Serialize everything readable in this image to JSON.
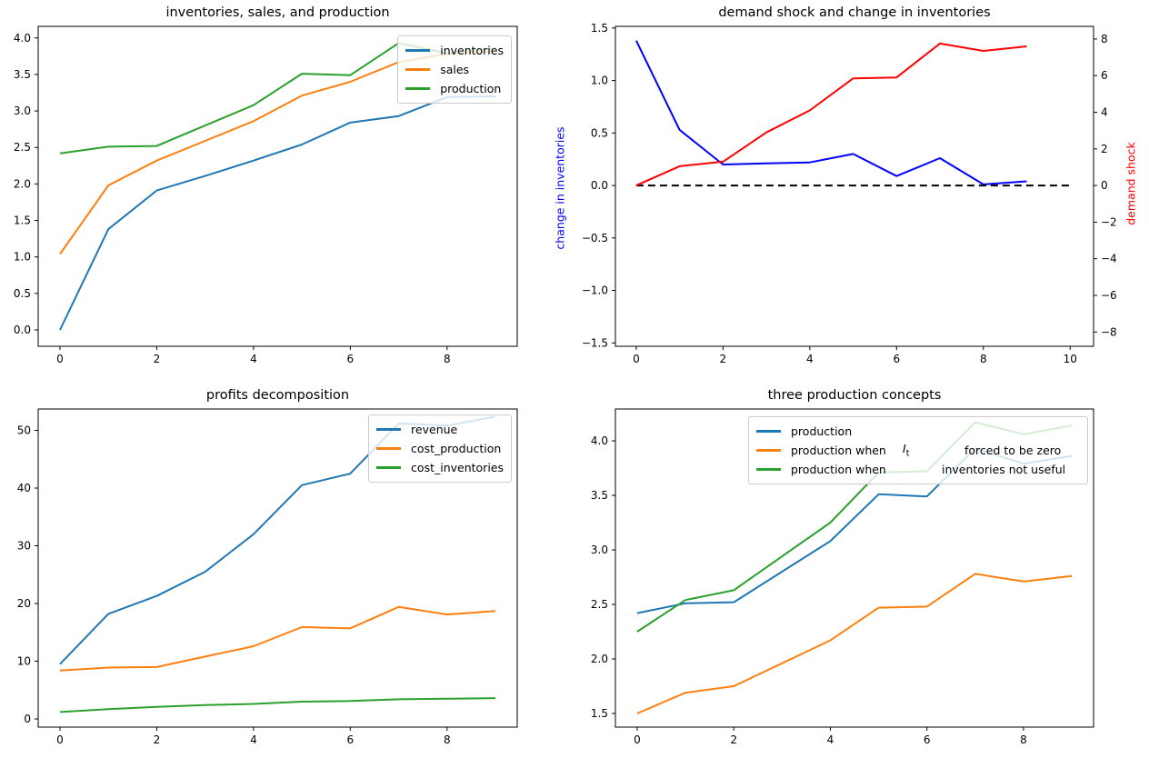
{
  "figure": {
    "background": "#ffffff"
  },
  "chart_data": [
    {
      "type": "line",
      "title": "inventories, sales, and production",
      "x": [
        0,
        1,
        2,
        3,
        4,
        5,
        6,
        7,
        8,
        9
      ],
      "xlim": [
        -0.45,
        9.45
      ],
      "ylim": [
        -0.224,
        4.159
      ],
      "grid": false,
      "xticks": [
        {
          "v": 0,
          "label": "0"
        },
        {
          "v": 2,
          "label": "2"
        },
        {
          "v": 4,
          "label": "4"
        },
        {
          "v": 6,
          "label": "6"
        },
        {
          "v": 8,
          "label": "8"
        }
      ],
      "yticks": [
        {
          "v": 0.0,
          "label": "0.0"
        },
        {
          "v": 0.5,
          "label": "0.5"
        },
        {
          "v": 1.0,
          "label": "1.0"
        },
        {
          "v": 1.5,
          "label": "1.5"
        },
        {
          "v": 2.0,
          "label": "2.0"
        },
        {
          "v": 2.5,
          "label": "2.5"
        },
        {
          "v": 3.0,
          "label": "3.0"
        },
        {
          "v": 3.5,
          "label": "3.5"
        },
        {
          "v": 4.0,
          "label": "4.0"
        }
      ],
      "series": [
        {
          "name": "inventories",
          "color": "#1f77b4",
          "values": [
            0.0,
            1.38,
            1.91,
            2.11,
            2.32,
            2.54,
            2.84,
            2.93,
            3.19,
            3.2
          ]
        },
        {
          "name": "sales",
          "color": "#ff7f0e",
          "values": [
            1.04,
            1.98,
            2.32,
            2.59,
            2.86,
            3.21,
            3.4,
            3.67,
            3.78,
            3.82
          ]
        },
        {
          "name": "production",
          "color": "#2ca02c",
          "values": [
            2.42,
            2.51,
            2.52,
            2.8,
            3.08,
            3.51,
            3.49,
            3.93,
            3.79,
            3.86
          ]
        }
      ],
      "legend": {
        "position": "upper right",
        "entries": [
          "inventories",
          "sales",
          "production"
        ]
      }
    },
    {
      "type": "line",
      "title": "demand shock and change in inventories",
      "x": [
        0,
        1,
        2,
        3,
        4,
        5,
        6,
        7,
        8,
        9
      ],
      "xlim": [
        -0.48,
        10.54
      ],
      "ylim": [
        -1.532,
        1.516
      ],
      "ylim_right": [
        -8.78,
        8.69
      ],
      "grid": false,
      "ylabel_left": {
        "text": "change in inventories",
        "color": "#0000ff"
      },
      "ylabel_right": {
        "text": "demand shock",
        "color": "#ff0000"
      },
      "xticks": [
        {
          "v": 0,
          "label": "0"
        },
        {
          "v": 2,
          "label": "2"
        },
        {
          "v": 4,
          "label": "4"
        },
        {
          "v": 6,
          "label": "6"
        },
        {
          "v": 8,
          "label": "8"
        },
        {
          "v": 10,
          "label": "10"
        }
      ],
      "yticks": [
        {
          "v": 1.5,
          "label": "1.5"
        },
        {
          "v": 1.0,
          "label": "1.0"
        },
        {
          "v": 0.5,
          "label": "0.5"
        },
        {
          "v": 0.0,
          "label": "0.0"
        },
        {
          "v": -0.5,
          "label": "−0.5"
        },
        {
          "v": -1.0,
          "label": "−1.0"
        },
        {
          "v": -1.5,
          "label": "−1.5"
        }
      ],
      "yticks_right": [
        {
          "v": 8,
          "label": "8"
        },
        {
          "v": 6,
          "label": "6"
        },
        {
          "v": 4,
          "label": "4"
        },
        {
          "v": 2,
          "label": "2"
        },
        {
          "v": 0,
          "label": "0"
        },
        {
          "v": -2,
          "label": "−2"
        },
        {
          "v": -4,
          "label": "−4"
        },
        {
          "v": -6,
          "label": "−6"
        },
        {
          "v": -8,
          "label": "−8"
        }
      ],
      "series": [
        {
          "name": "change in inventories",
          "color": "#0000ff",
          "axis": "left",
          "values": [
            1.38,
            0.53,
            0.2,
            0.21,
            0.22,
            0.3,
            0.09,
            0.26,
            0.01,
            0.04
          ]
        },
        {
          "name": "zero line",
          "color": "#000000",
          "axis": "left",
          "dash": true,
          "x": [
            0,
            10
          ],
          "values": [
            0,
            0
          ]
        },
        {
          "name": "demand shock",
          "color": "#ff0000",
          "axis": "right",
          "values": [
            0.0,
            1.05,
            1.3,
            2.9,
            4.1,
            5.85,
            5.9,
            7.75,
            7.35,
            7.6
          ]
        }
      ]
    },
    {
      "type": "line",
      "title": "profits decomposition",
      "x": [
        0,
        1,
        2,
        3,
        4,
        5,
        6,
        7,
        8,
        9
      ],
      "xlim": [
        -0.45,
        9.45
      ],
      "ylim": [
        -1.417,
        53.7
      ],
      "grid": false,
      "xticks": [
        {
          "v": 0,
          "label": "0"
        },
        {
          "v": 2,
          "label": "2"
        },
        {
          "v": 4,
          "label": "4"
        },
        {
          "v": 6,
          "label": "6"
        },
        {
          "v": 8,
          "label": "8"
        }
      ],
      "yticks": [
        {
          "v": 0,
          "label": "0"
        },
        {
          "v": 10,
          "label": "10"
        },
        {
          "v": 20,
          "label": "20"
        },
        {
          "v": 30,
          "label": "30"
        },
        {
          "v": 40,
          "label": "40"
        },
        {
          "v": 50,
          "label": "50"
        }
      ],
      "series": [
        {
          "name": "revenue",
          "color": "#1f77b4",
          "values": [
            9.5,
            18.2,
            21.3,
            25.5,
            32.0,
            40.5,
            42.5,
            51.2,
            50.8,
            52.4
          ]
        },
        {
          "name": "cost_production",
          "color": "#ff7f0e",
          "values": [
            8.4,
            8.9,
            9.0,
            10.8,
            12.6,
            15.9,
            15.7,
            19.4,
            18.1,
            18.7
          ]
        },
        {
          "name": "cost_inventories",
          "color": "#2ca02c",
          "values": [
            1.2,
            1.7,
            2.1,
            2.4,
            2.6,
            3.0,
            3.1,
            3.4,
            3.5,
            3.6
          ]
        }
      ],
      "legend": {
        "position": "upper right",
        "entries": [
          "revenue",
          "cost_production",
          "cost_inventories"
        ]
      }
    },
    {
      "type": "line",
      "title": "three production concepts",
      "x": [
        0,
        1,
        2,
        3,
        4,
        5,
        6,
        7,
        8,
        9
      ],
      "xlim": [
        -0.45,
        9.45
      ],
      "ylim": [
        1.375,
        4.292
      ],
      "grid": false,
      "xticks": [
        {
          "v": 0,
          "label": "0"
        },
        {
          "v": 2,
          "label": "2"
        },
        {
          "v": 4,
          "label": "4"
        },
        {
          "v": 6,
          "label": "6"
        },
        {
          "v": 8,
          "label": "8"
        }
      ],
      "yticks": [
        {
          "v": 1.5,
          "label": "1.5"
        },
        {
          "v": 2.0,
          "label": "2.0"
        },
        {
          "v": 2.5,
          "label": "2.5"
        },
        {
          "v": 3.0,
          "label": "3.0"
        },
        {
          "v": 3.5,
          "label": "3.5"
        },
        {
          "v": 4.0,
          "label": "4.0"
        }
      ],
      "series": [
        {
          "name": "production",
          "color": "#1f77b4",
          "values": [
            2.42,
            2.51,
            2.52,
            2.8,
            3.08,
            3.51,
            3.49,
            3.93,
            3.79,
            3.86
          ]
        },
        {
          "name": "production when It forced to be zero",
          "color": "#ff7f0e",
          "values": [
            1.5,
            1.69,
            1.75,
            1.96,
            2.17,
            2.47,
            2.48,
            2.78,
            2.71,
            2.76
          ]
        },
        {
          "name": "production when inventories not useful",
          "color": "#2ca02c",
          "values": [
            2.25,
            2.54,
            2.63,
            2.94,
            3.25,
            3.71,
            3.72,
            4.17,
            4.06,
            4.14
          ]
        }
      ],
      "legend": {
        "position": "upper right",
        "entries": [
          {
            "label1": "production",
            "math_base": "",
            "math_sub": "",
            "label2": ""
          },
          {
            "label1": "production when",
            "math_base": "I",
            "math_sub": "t",
            "label2": "forced to be zero"
          },
          {
            "label1": "production when",
            "math_base": "",
            "math_sub": "",
            "label2": "inventories not useful"
          }
        ]
      }
    }
  ]
}
